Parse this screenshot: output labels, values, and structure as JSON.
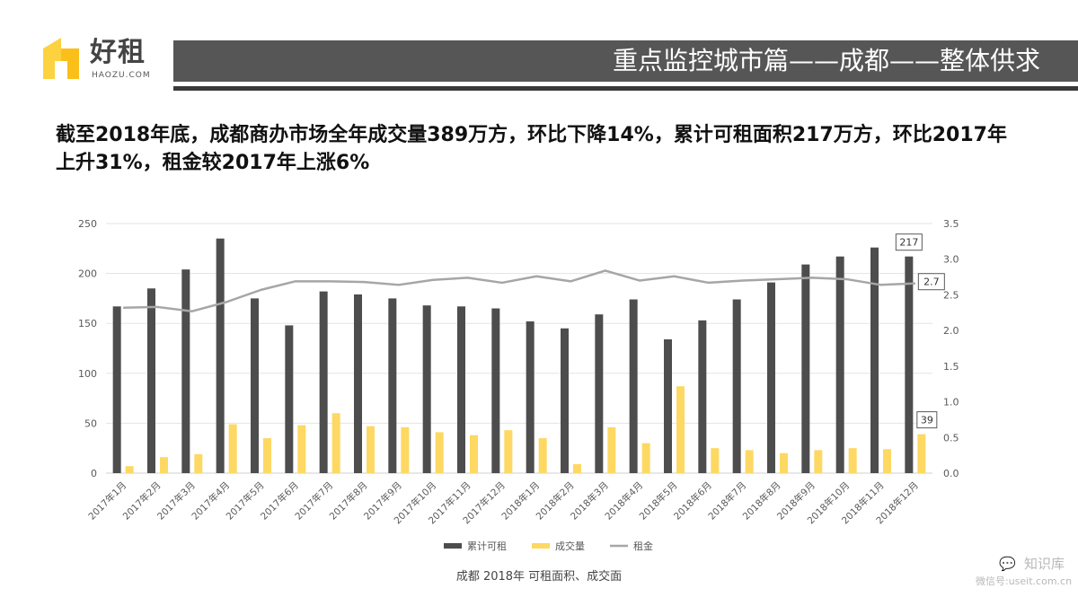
{
  "logo": {
    "name": "好租",
    "domain": "HAOZU.COM"
  },
  "header": {
    "title": "重点监控城市篇——成都——整体供求"
  },
  "summary": "截至2018年底，成都商办市场全年成交量389万方，环比下降14%，累计可租面积217万方，环比2017年上升31%，租金较2017年上涨6%",
  "chart_data": {
    "type": "bar",
    "categories": [
      "2017年1月",
      "2017年2月",
      "2017年3月",
      "2017年4月",
      "2017年5月",
      "2017年6月",
      "2017年7月",
      "2017年8月",
      "2017年9月",
      "2017年10月",
      "2017年11月",
      "2017年12月",
      "2018年1月",
      "2018年2月",
      "2018年3月",
      "2018年4月",
      "2018年5月",
      "2018年6月",
      "2018年7月",
      "2018年8月",
      "2018年9月",
      "2018年10月",
      "2018年11月",
      "2018年12月"
    ],
    "series": [
      {
        "name": "累计可租",
        "type": "bar",
        "axis": "left",
        "color": "#4d4d4d",
        "values": [
          167,
          185,
          204,
          235,
          175,
          148,
          182,
          179,
          175,
          168,
          167,
          165,
          152,
          145,
          159,
          174,
          134,
          153,
          174,
          191,
          209,
          217,
          226,
          217
        ]
      },
      {
        "name": "成交量",
        "type": "bar",
        "axis": "left",
        "color": "#fdd863",
        "values": [
          7,
          16,
          19,
          49,
          35,
          48,
          60,
          47,
          46,
          41,
          38,
          43,
          35,
          9,
          46,
          30,
          87,
          25,
          23,
          20,
          23,
          25,
          24,
          39
        ]
      },
      {
        "name": "租金",
        "type": "line",
        "axis": "right",
        "color": "#a6a6a6",
        "values": [
          2.32,
          2.33,
          2.27,
          2.4,
          2.57,
          2.69,
          2.69,
          2.68,
          2.64,
          2.71,
          2.74,
          2.67,
          2.76,
          2.69,
          2.84,
          2.7,
          2.76,
          2.67,
          2.7,
          2.72,
          2.74,
          2.72,
          2.64,
          2.66
        ]
      }
    ],
    "ylim": [
      0,
      250
    ],
    "yticks": [
      0,
      50,
      100,
      150,
      200,
      250
    ],
    "y2lim": [
      0,
      3.5
    ],
    "y2ticks": [
      "0.0",
      "0.5",
      "1.0",
      "1.5",
      "2.0",
      "2.5",
      "3.0",
      "3.5"
    ],
    "annotations": [
      {
        "series": "累计可租",
        "index": 23,
        "text": "217"
      },
      {
        "series": "租金",
        "index": 23,
        "text": "2.7"
      },
      {
        "series": "成交量",
        "index": 23,
        "text": "39"
      }
    ],
    "legend": {
      "position": "bottom"
    },
    "grid": true,
    "caption": "成都 2018年 可租面积、成交面"
  },
  "watermark": {
    "icon": "wechat-icon",
    "title": "知识库",
    "subtitle": "微信号:useit.com.cn"
  }
}
